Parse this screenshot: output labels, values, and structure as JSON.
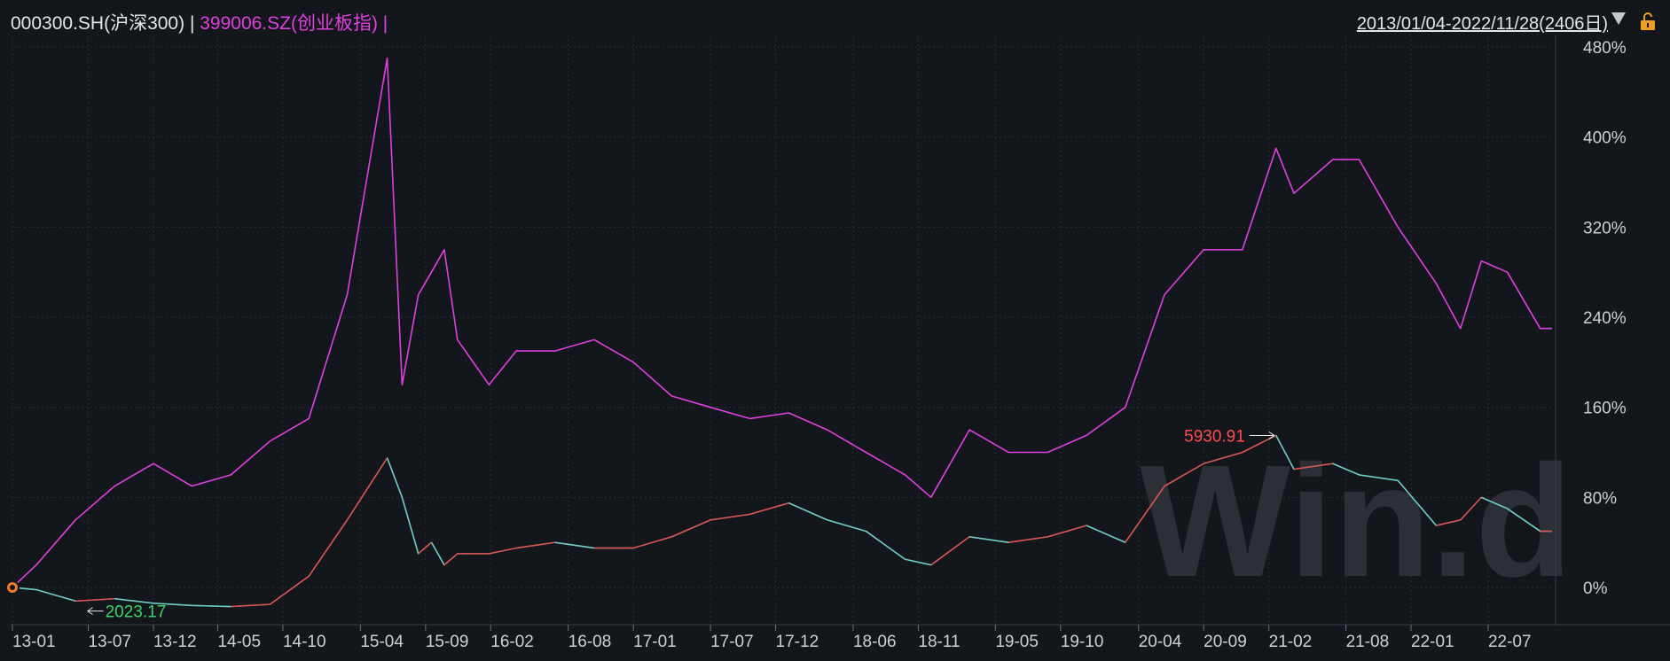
{
  "header": {
    "series1_label": "000300.SH(沪深300)",
    "sep1": " | ",
    "series2_label": "399006.SZ(创业板指)",
    "sep2": " |",
    "range_label": "2013/01/04-2022/11/28(2406日)",
    "dropdown_icon": "chevron-down-icon",
    "lock_icon": "lock-icon"
  },
  "watermark": "Win.d",
  "chart_data": {
    "type": "line",
    "title": "",
    "x_tick_labels": [
      "13-01",
      "13-07",
      "13-12",
      "14-05",
      "14-10",
      "15-04",
      "15-09",
      "16-02",
      "16-08",
      "17-01",
      "17-07",
      "17-12",
      "18-06",
      "18-11",
      "19-05",
      "19-10",
      "20-04",
      "20-09",
      "21-02",
      "21-08",
      "22-01",
      "22-07"
    ],
    "y_tick_labels": [
      "480%",
      "400%",
      "320%",
      "240%",
      "160%",
      "80%",
      "0%"
    ],
    "ylim": [
      -30,
      480
    ],
    "grid": true,
    "colors": {
      "series1": "#e040e0",
      "series2_up": "#e03030",
      "series2_down": "#50d0c8",
      "series2_line": "#c8c8c8",
      "max_label": "#ff4d4d",
      "min_label": "#3ad46a"
    },
    "x_dates": [
      "2013-01-04",
      "2013-03-01",
      "2013-06-01",
      "2013-09-01",
      "2013-12-01",
      "2014-03-01",
      "2014-06-01",
      "2014-09-01",
      "2014-12-01",
      "2015-03-01",
      "2015-06-03",
      "2015-07-08",
      "2015-08-15",
      "2015-09-15",
      "2015-10-15",
      "2015-11-15",
      "2016-01-28",
      "2016-04-01",
      "2016-07-01",
      "2016-10-01",
      "2017-01-01",
      "2017-04-01",
      "2017-07-01",
      "2017-10-01",
      "2018-01-01",
      "2018-04-01",
      "2018-07-01",
      "2018-10-01",
      "2018-12-01",
      "2019-03-01",
      "2019-06-01",
      "2019-09-01",
      "2019-12-01",
      "2020-03-01",
      "2020-06-01",
      "2020-09-01",
      "2020-12-01",
      "2021-02-18",
      "2021-04-01",
      "2021-07-01",
      "2021-09-01",
      "2021-12-01",
      "2022-03-01",
      "2022-04-27",
      "2022-06-15",
      "2022-08-15",
      "2022-10-31",
      "2022-11-28"
    ],
    "series": [
      {
        "name": "399006.SZ(创业板指)",
        "values": [
          0,
          20,
          60,
          90,
          110,
          90,
          100,
          130,
          150,
          260,
          470,
          180,
          260,
          280,
          300,
          220,
          180,
          210,
          210,
          220,
          200,
          170,
          160,
          150,
          155,
          140,
          120,
          100,
          80,
          140,
          120,
          120,
          135,
          160,
          260,
          300,
          300,
          390,
          350,
          380,
          380,
          320,
          270,
          230,
          290,
          280,
          230,
          230
        ]
      },
      {
        "name": "000300.SH(沪深300)",
        "values": [
          0,
          -2,
          -12,
          -10,
          -14,
          -16,
          -17,
          -15,
          10,
          60,
          115,
          80,
          30,
          40,
          20,
          30,
          30,
          35,
          40,
          35,
          35,
          45,
          60,
          65,
          75,
          60,
          50,
          25,
          20,
          45,
          40,
          45,
          55,
          40,
          90,
          110,
          120,
          135,
          105,
          110,
          100,
          95,
          55,
          60,
          80,
          70,
          50,
          50
        ]
      }
    ],
    "annotations": [
      {
        "label": "5930.91",
        "date": "2021-02-18",
        "value": 135,
        "type": "max"
      },
      {
        "label": "2023.17",
        "date": "2013-06-25",
        "value": -17,
        "type": "min"
      }
    ]
  }
}
